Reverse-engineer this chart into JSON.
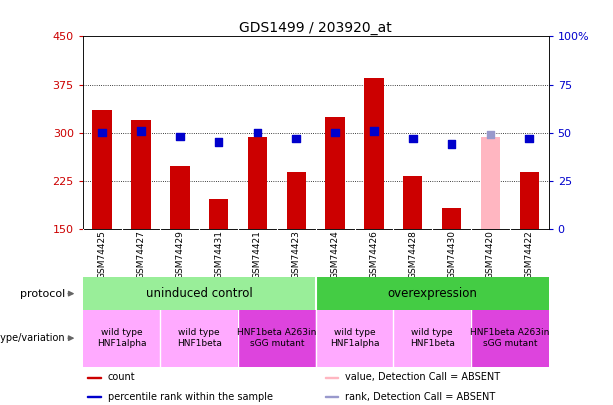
{
  "title": "GDS1499 / 203920_at",
  "samples": [
    "GSM74425",
    "GSM74427",
    "GSM74429",
    "GSM74431",
    "GSM74421",
    "GSM74423",
    "GSM74424",
    "GSM74426",
    "GSM74428",
    "GSM74430",
    "GSM74420",
    "GSM74422"
  ],
  "counts": [
    335,
    320,
    248,
    196,
    293,
    238,
    325,
    385,
    233,
    183,
    293,
    238
  ],
  "count_absent": [
    false,
    false,
    false,
    false,
    false,
    false,
    false,
    false,
    false,
    false,
    true,
    false
  ],
  "percentile_ranks": [
    50,
    51,
    48,
    45,
    50,
    47,
    50,
    51,
    47,
    44,
    49,
    47
  ],
  "rank_absent": [
    false,
    false,
    false,
    false,
    false,
    false,
    false,
    false,
    false,
    false,
    true,
    false
  ],
  "ylim_left": [
    150,
    450
  ],
  "ylim_right": [
    0,
    100
  ],
  "yticks_left": [
    150,
    225,
    300,
    375,
    450
  ],
  "yticks_right": [
    0,
    25,
    50,
    75,
    100
  ],
  "bar_color_normal": "#cc0000",
  "bar_color_absent": "#ffb6c1",
  "dot_color_normal": "#0000cc",
  "dot_color_absent": "#9999cc",
  "protocol_groups": [
    {
      "label": "uninduced control",
      "start": 0,
      "end": 6,
      "color": "#99ee99"
    },
    {
      "label": "overexpression",
      "start": 6,
      "end": 12,
      "color": "#44cc44"
    }
  ],
  "genotype_groups": [
    {
      "label": "wild type\nHNF1alpha",
      "start": 0,
      "end": 2,
      "color": "#ffaaff"
    },
    {
      "label": "wild type\nHNF1beta",
      "start": 2,
      "end": 4,
      "color": "#ffaaff"
    },
    {
      "label": "HNF1beta A263in\nsGG mutant",
      "start": 4,
      "end": 6,
      "color": "#dd44dd"
    },
    {
      "label": "wild type\nHNF1alpha",
      "start": 6,
      "end": 8,
      "color": "#ffaaff"
    },
    {
      "label": "wild type\nHNF1beta",
      "start": 8,
      "end": 10,
      "color": "#ffaaff"
    },
    {
      "label": "HNF1beta A263in\nsGG mutant",
      "start": 10,
      "end": 12,
      "color": "#dd44dd"
    }
  ],
  "legend_items": [
    {
      "label": "count",
      "color": "#cc0000"
    },
    {
      "label": "percentile rank within the sample",
      "color": "#0000cc"
    },
    {
      "label": "value, Detection Call = ABSENT",
      "color": "#ffb6c1"
    },
    {
      "label": "rank, Detection Call = ABSENT",
      "color": "#9999cc"
    }
  ],
  "bg_color": "#ffffff",
  "bar_width": 0.5,
  "dot_size": 30,
  "xlabels_bg": "#cccccc",
  "spine_color": "#888888"
}
